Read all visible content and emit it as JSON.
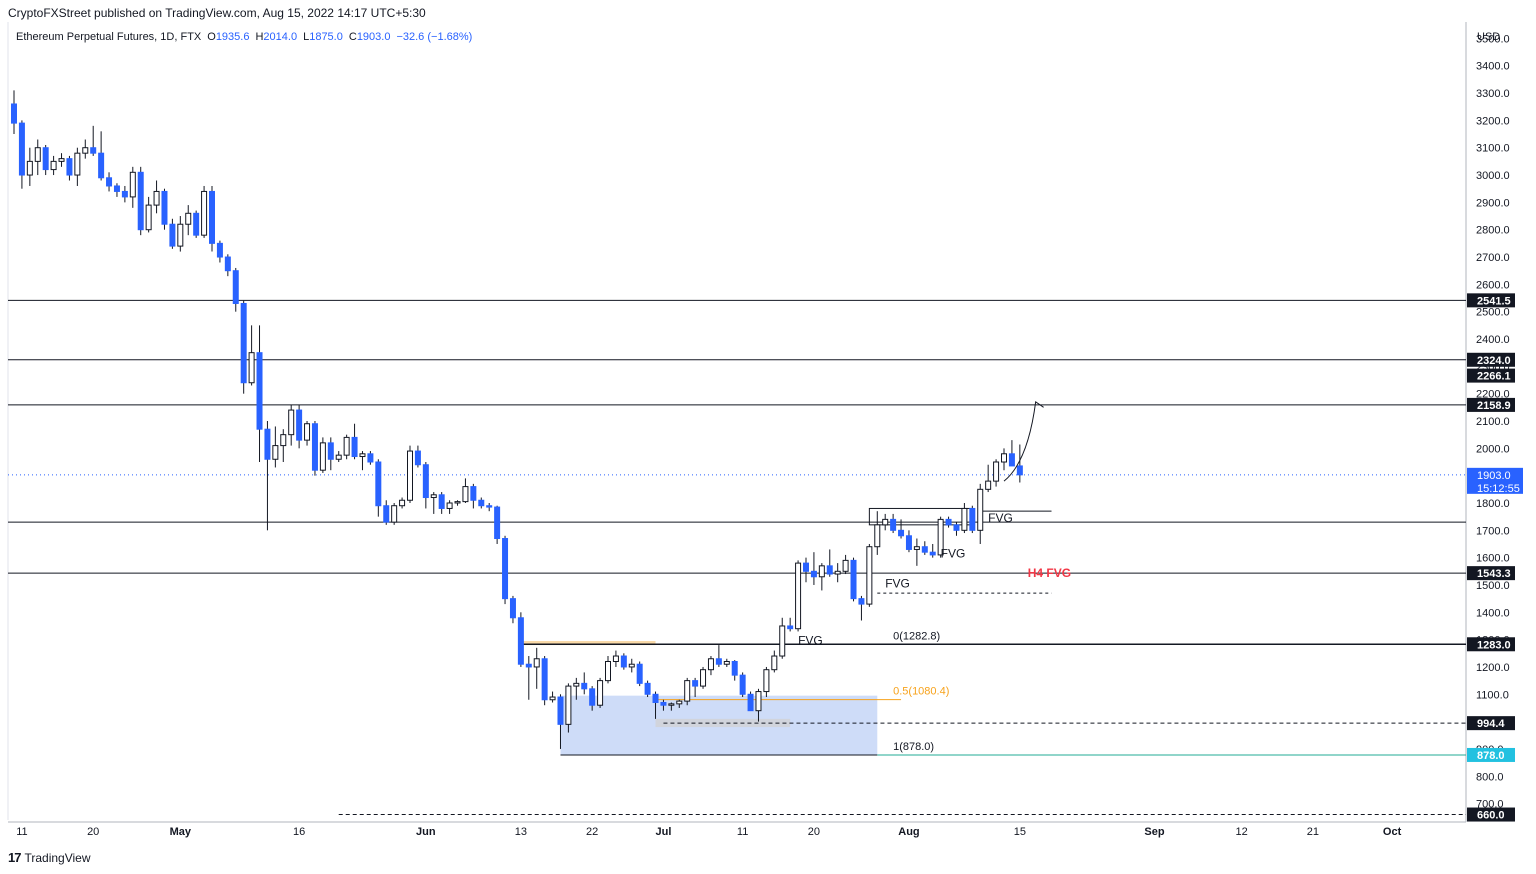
{
  "publisher": "CryptoFXStreet published on TradingView.com, Aug 15, 2022 14:17 UTC+5:30",
  "footer_brand": "TradingView",
  "legend": {
    "symbol": "Ethereum Perpetual Futures, 1D, FTX",
    "open_label": "O",
    "open": "1935.6",
    "high_label": "H",
    "high": "2014.0",
    "low_label": "L",
    "low": "1875.0",
    "close_label": "C",
    "close": "1903.0",
    "change": "−32.6 (−1.68%)"
  },
  "colors": {
    "up": "#ffffff",
    "down": "#2962ff",
    "wick": "#131722",
    "last_price": "#2962ff",
    "fib_mid": "#f7a21b",
    "fib_low": "#22ab94",
    "h4": "#f23645",
    "zone": "#c9d8f7"
  },
  "chart_data": {
    "type": "candlestick",
    "currency_label": "USD",
    "ylim": [
      640,
      3560
    ],
    "y_ticks": [
      "700.0",
      "800.0",
      "900.0",
      "1000.0",
      "1100.0",
      "1200.0",
      "1300.0",
      "1400.0",
      "1500.0",
      "1600.0",
      "1700.0",
      "1800.0",
      "1900.0",
      "2000.0",
      "2100.0",
      "2200.0",
      "2300.0",
      "2400.0",
      "2500.0",
      "2600.0",
      "2700.0",
      "2800.0",
      "2900.0",
      "3000.0",
      "3100.0",
      "3200.0",
      "3300.0",
      "3400.0",
      "3500.0"
    ],
    "x_ticks": [
      {
        "date": "2022-04-11",
        "label": "11"
      },
      {
        "date": "2022-04-20",
        "label": "20"
      },
      {
        "date": "2022-05-01",
        "label": "May"
      },
      {
        "date": "2022-05-16",
        "label": "16"
      },
      {
        "date": "2022-06-01",
        "label": "Jun"
      },
      {
        "date": "2022-06-13",
        "label": "13"
      },
      {
        "date": "2022-06-22",
        "label": "22"
      },
      {
        "date": "2022-07-01",
        "label": "Jul"
      },
      {
        "date": "2022-07-11",
        "label": "11"
      },
      {
        "date": "2022-07-20",
        "label": "20"
      },
      {
        "date": "2022-08-01",
        "label": "Aug"
      },
      {
        "date": "2022-08-15",
        "label": "15"
      },
      {
        "date": "2022-09-01",
        "label": "Sep"
      },
      {
        "date": "2022-09-12",
        "label": "12"
      },
      {
        "date": "2022-09-21",
        "label": "21"
      },
      {
        "date": "2022-10-01",
        "label": "Oct"
      }
    ],
    "x_range": [
      "2022-04-10",
      "2022-10-08"
    ],
    "candles": [
      [
        "2022-04-10",
        3260,
        3310,
        3150,
        3190
      ],
      [
        "2022-04-11",
        3190,
        3200,
        2950,
        3000
      ],
      [
        "2022-04-12",
        3000,
        3100,
        2960,
        3050
      ],
      [
        "2022-04-13",
        3050,
        3130,
        3000,
        3100
      ],
      [
        "2022-04-14",
        3100,
        3110,
        3000,
        3020
      ],
      [
        "2022-04-15",
        3020,
        3070,
        3000,
        3050
      ],
      [
        "2022-04-16",
        3050,
        3080,
        3030,
        3060
      ],
      [
        "2022-04-17",
        3060,
        3070,
        2980,
        3000
      ],
      [
        "2022-04-18",
        3000,
        3100,
        2960,
        3080
      ],
      [
        "2022-04-19",
        3080,
        3130,
        3060,
        3100
      ],
      [
        "2022-04-20",
        3100,
        3180,
        3070,
        3080
      ],
      [
        "2022-04-21",
        3080,
        3160,
        2980,
        2990
      ],
      [
        "2022-04-22",
        2990,
        3010,
        2940,
        2960
      ],
      [
        "2022-04-23",
        2960,
        2970,
        2920,
        2940
      ],
      [
        "2022-04-24",
        2940,
        2960,
        2900,
        2920
      ],
      [
        "2022-04-25",
        2920,
        3030,
        2880,
        3010
      ],
      [
        "2022-04-26",
        3010,
        3030,
        2780,
        2800
      ],
      [
        "2022-04-27",
        2800,
        2920,
        2790,
        2890
      ],
      [
        "2022-04-28",
        2890,
        2980,
        2860,
        2940
      ],
      [
        "2022-04-29",
        2940,
        2950,
        2800,
        2820
      ],
      [
        "2022-04-30",
        2820,
        2840,
        2730,
        2740
      ],
      [
        "2022-05-01",
        2740,
        2850,
        2720,
        2820
      ],
      [
        "2022-05-02",
        2820,
        2890,
        2780,
        2860
      ],
      [
        "2022-05-03",
        2860,
        2870,
        2770,
        2780
      ],
      [
        "2022-05-04",
        2780,
        2960,
        2770,
        2940
      ],
      [
        "2022-05-05",
        2940,
        2960,
        2720,
        2750
      ],
      [
        "2022-05-06",
        2750,
        2760,
        2680,
        2700
      ],
      [
        "2022-05-07",
        2700,
        2710,
        2630,
        2650
      ],
      [
        "2022-05-08",
        2650,
        2660,
        2500,
        2530
      ],
      [
        "2022-05-09",
        2530,
        2540,
        2200,
        2240
      ],
      [
        "2022-05-10",
        2240,
        2450,
        2230,
        2350
      ],
      [
        "2022-05-11",
        2350,
        2450,
        1950,
        2070
      ],
      [
        "2022-05-12",
        2070,
        2100,
        1700,
        1960
      ],
      [
        "2022-05-13",
        1960,
        2080,
        1930,
        2010
      ],
      [
        "2022-05-14",
        2010,
        2070,
        1950,
        2050
      ],
      [
        "2022-05-15",
        2050,
        2160,
        2010,
        2140
      ],
      [
        "2022-05-16",
        2140,
        2160,
        2000,
        2030
      ],
      [
        "2022-05-17",
        2030,
        2100,
        2010,
        2090
      ],
      [
        "2022-05-18",
        2090,
        2100,
        1900,
        1920
      ],
      [
        "2022-05-19",
        1920,
        2040,
        1910,
        2020
      ],
      [
        "2022-05-20",
        2020,
        2040,
        1920,
        1960
      ],
      [
        "2022-05-21",
        1960,
        1990,
        1950,
        1975
      ],
      [
        "2022-05-22",
        1975,
        2050,
        1960,
        2040
      ],
      [
        "2022-05-23",
        2040,
        2090,
        1960,
        1970
      ],
      [
        "2022-05-24",
        1970,
        1990,
        1920,
        1980
      ],
      [
        "2022-05-25",
        1980,
        1990,
        1940,
        1950
      ],
      [
        "2022-05-26",
        1950,
        1960,
        1750,
        1790
      ],
      [
        "2022-05-27",
        1790,
        1810,
        1720,
        1730
      ],
      [
        "2022-05-28",
        1730,
        1800,
        1720,
        1790
      ],
      [
        "2022-05-29",
        1790,
        1820,
        1780,
        1810
      ],
      [
        "2022-05-30",
        1810,
        2010,
        1800,
        1990
      ],
      [
        "2022-05-31",
        1990,
        2010,
        1930,
        1940
      ],
      [
        "2022-06-01",
        1940,
        1950,
        1780,
        1820
      ],
      [
        "2022-06-02",
        1820,
        1840,
        1760,
        1830
      ],
      [
        "2022-06-03",
        1830,
        1840,
        1760,
        1780
      ],
      [
        "2022-06-04",
        1780,
        1810,
        1760,
        1800
      ],
      [
        "2022-06-05",
        1800,
        1810,
        1790,
        1805
      ],
      [
        "2022-06-06",
        1805,
        1890,
        1800,
        1860
      ],
      [
        "2022-06-07",
        1860,
        1870,
        1780,
        1810
      ],
      [
        "2022-06-08",
        1810,
        1820,
        1780,
        1790
      ],
      [
        "2022-06-09",
        1790,
        1800,
        1770,
        1785
      ],
      [
        "2022-06-10",
        1785,
        1790,
        1650,
        1670
      ],
      [
        "2022-06-11",
        1670,
        1680,
        1430,
        1450
      ],
      [
        "2022-06-12",
        1450,
        1460,
        1360,
        1380
      ],
      [
        "2022-06-13",
        1380,
        1400,
        1200,
        1210
      ],
      [
        "2022-06-14",
        1210,
        1240,
        1080,
        1200
      ],
      [
        "2022-06-15",
        1200,
        1270,
        1120,
        1230
      ],
      [
        "2022-06-16",
        1230,
        1240,
        1060,
        1080
      ],
      [
        "2022-06-17",
        1080,
        1110,
        1070,
        1090
      ],
      [
        "2022-06-18",
        1090,
        1100,
        900,
        990
      ],
      [
        "2022-06-19",
        990,
        1140,
        960,
        1130
      ],
      [
        "2022-06-20",
        1130,
        1160,
        1080,
        1140
      ],
      [
        "2022-06-21",
        1140,
        1180,
        1100,
        1120
      ],
      [
        "2022-06-22",
        1120,
        1130,
        1040,
        1060
      ],
      [
        "2022-06-23",
        1060,
        1160,
        1050,
        1150
      ],
      [
        "2022-06-24",
        1150,
        1240,
        1140,
        1220
      ],
      [
        "2022-06-25",
        1220,
        1260,
        1200,
        1240
      ],
      [
        "2022-06-26",
        1240,
        1250,
        1190,
        1200
      ],
      [
        "2022-06-27",
        1200,
        1230,
        1180,
        1210
      ],
      [
        "2022-06-28",
        1210,
        1220,
        1130,
        1140
      ],
      [
        "2022-06-29",
        1140,
        1150,
        1090,
        1100
      ],
      [
        "2022-06-30",
        1100,
        1110,
        1010,
        1070
      ],
      [
        "2022-07-01",
        1070,
        1080,
        1040,
        1060
      ],
      [
        "2022-07-02",
        1060,
        1070,
        1040,
        1065
      ],
      [
        "2022-07-03",
        1065,
        1080,
        1050,
        1075
      ],
      [
        "2022-07-04",
        1075,
        1160,
        1060,
        1150
      ],
      [
        "2022-07-05",
        1150,
        1160,
        1090,
        1130
      ],
      [
        "2022-07-06",
        1130,
        1200,
        1120,
        1190
      ],
      [
        "2022-07-07",
        1190,
        1240,
        1170,
        1230
      ],
      [
        "2022-07-08",
        1230,
        1280,
        1200,
        1210
      ],
      [
        "2022-07-09",
        1210,
        1230,
        1200,
        1220
      ],
      [
        "2022-07-10",
        1220,
        1225,
        1150,
        1170
      ],
      [
        "2022-07-11",
        1170,
        1180,
        1090,
        1100
      ],
      [
        "2022-07-12",
        1100,
        1110,
        1040,
        1040
      ],
      [
        "2022-07-13",
        1040,
        1120,
        1000,
        1110
      ],
      [
        "2022-07-14",
        1110,
        1200,
        1090,
        1190
      ],
      [
        "2022-07-15",
        1190,
        1260,
        1180,
        1240
      ],
      [
        "2022-07-16",
        1240,
        1380,
        1230,
        1350
      ],
      [
        "2022-07-17",
        1350,
        1380,
        1330,
        1340
      ],
      [
        "2022-07-18",
        1340,
        1590,
        1330,
        1580
      ],
      [
        "2022-07-19",
        1580,
        1600,
        1510,
        1550
      ],
      [
        "2022-07-20",
        1550,
        1620,
        1500,
        1530
      ],
      [
        "2022-07-21",
        1530,
        1580,
        1480,
        1570
      ],
      [
        "2022-07-22",
        1570,
        1630,
        1530,
        1540
      ],
      [
        "2022-07-23",
        1540,
        1580,
        1510,
        1550
      ],
      [
        "2022-07-24",
        1550,
        1610,
        1540,
        1590
      ],
      [
        "2022-07-25",
        1590,
        1600,
        1440,
        1450
      ],
      [
        "2022-07-26",
        1450,
        1460,
        1370,
        1430
      ],
      [
        "2022-07-27",
        1430,
        1650,
        1420,
        1640
      ],
      [
        "2022-07-28",
        1640,
        1770,
        1610,
        1720
      ],
      [
        "2022-07-29",
        1720,
        1760,
        1700,
        1740
      ],
      [
        "2022-07-30",
        1740,
        1760,
        1690,
        1700
      ],
      [
        "2022-07-31",
        1700,
        1740,
        1670,
        1680
      ],
      [
        "2022-08-01",
        1680,
        1700,
        1620,
        1630
      ],
      [
        "2022-08-02",
        1630,
        1670,
        1570,
        1640
      ],
      [
        "2022-08-03",
        1640,
        1660,
        1610,
        1620
      ],
      [
        "2022-08-04",
        1620,
        1650,
        1600,
        1610
      ],
      [
        "2022-08-05",
        1610,
        1750,
        1600,
        1740
      ],
      [
        "2022-08-06",
        1740,
        1750,
        1710,
        1720
      ],
      [
        "2022-08-07",
        1720,
        1730,
        1680,
        1700
      ],
      [
        "2022-08-08",
        1700,
        1800,
        1690,
        1780
      ],
      [
        "2022-08-09",
        1780,
        1790,
        1690,
        1700
      ],
      [
        "2022-08-10",
        1700,
        1870,
        1650,
        1850
      ],
      [
        "2022-08-11",
        1850,
        1940,
        1840,
        1880
      ],
      [
        "2022-08-12",
        1880,
        1960,
        1860,
        1950
      ],
      [
        "2022-08-13",
        1950,
        2000,
        1920,
        1980
      ],
      [
        "2022-08-14",
        1980,
        2030,
        1960,
        1935.6
      ],
      [
        "2022-08-15",
        1935.6,
        2014,
        1875,
        1903
      ]
    ],
    "horizontal_levels": [
      {
        "price": 2541.5,
        "label": "2541.5",
        "style": "solid",
        "color": "#131722"
      },
      {
        "price": 2324.0,
        "label": "2324.0",
        "style": "solid",
        "color": "#131722"
      },
      {
        "price": 2158.9,
        "label": "2158.9",
        "style": "solid",
        "color": "#131722"
      },
      {
        "price": 1730.0,
        "style": "solid",
        "color": "#131722"
      },
      {
        "price": 1543.3,
        "label": "1543.3",
        "style": "solid",
        "color": "#131722"
      },
      {
        "price": 1283.0,
        "label": "1283.0",
        "style": "solid",
        "color": "#131722"
      },
      {
        "price": 994.4,
        "label": "994.4",
        "style": "dashed",
        "color": "#131722"
      },
      {
        "price": 878.0,
        "label": "878.0",
        "style": "solid",
        "color": "#22ab94"
      },
      {
        "price": 660.0,
        "label": "660.0",
        "style": "dashed",
        "color": "#131722"
      }
    ],
    "extra_axis_labels": [
      {
        "price": 2266.1,
        "label": "2266.1"
      }
    ],
    "last_price": {
      "price": 1903.0,
      "label": "1903.0",
      "countdown": "15:12:55"
    },
    "fib_levels": [
      {
        "price": 1282.8,
        "label": "0(1282.8)",
        "color": "#131722"
      },
      {
        "price": 1080.4,
        "label": "0.5(1080.4)",
        "color": "#f7a21b"
      },
      {
        "price": 878.0,
        "label": "1(878.0)",
        "color": "#131722"
      }
    ],
    "annotations": [
      {
        "text": "FVG",
        "date": "2022-07-18",
        "price": 1283,
        "color": "#131722"
      },
      {
        "text": "FVG",
        "date": "2022-07-29",
        "price": 1490,
        "color": "#131722"
      },
      {
        "text": "FVG",
        "date": "2022-08-05",
        "price": 1600,
        "color": "#131722"
      },
      {
        "text": "FVG",
        "date": "2022-08-11",
        "price": 1730,
        "color": "#131722"
      },
      {
        "text": "H4 FVG",
        "date": "2022-08-16",
        "price": 1530,
        "color": "#f23645"
      }
    ]
  }
}
